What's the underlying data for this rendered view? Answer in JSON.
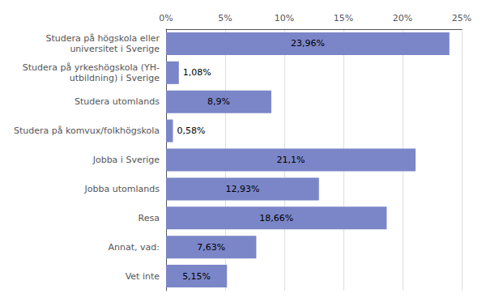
{
  "chart_data": {
    "type": "bar",
    "orientation": "horizontal",
    "categories": [
      "Vet inte",
      "Annat, vad:",
      "Resa",
      "Jobba utomlands",
      "Jobba i Sverige",
      "Studera på komvux/folkhögskola",
      "Studera utomlands",
      "Studera på yrkeshögskola (YH-\nutbildning) i Sverige",
      "Studera på högskola eller\nuniversitet i Sverige"
    ],
    "values": [
      5.15,
      7.63,
      18.66,
      12.93,
      21.1,
      0.58,
      8.9,
      1.08,
      23.96
    ],
    "value_labels": [
      "5,15%",
      "7,63%",
      "18,66%",
      "12,93%",
      "21,1%",
      "0,58%",
      "8,9%",
      "1,08%",
      "23,96%"
    ],
    "data_labels": true,
    "color": "#7b86c8",
    "xlim": [
      0,
      25
    ],
    "xticks": [
      {
        "value": 0,
        "label": "0%"
      },
      {
        "value": 5,
        "label": "5%"
      },
      {
        "value": 10,
        "label": "10%"
      },
      {
        "value": 15,
        "label": "15%"
      },
      {
        "value": 20,
        "label": "20%"
      },
      {
        "value": 25,
        "label": "25%"
      }
    ],
    "grid": true
  }
}
